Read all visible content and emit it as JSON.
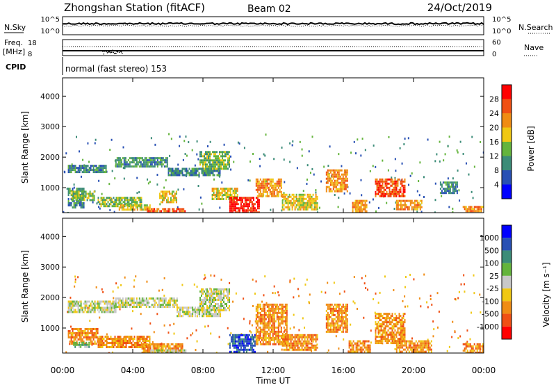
{
  "header": {
    "title": "Zhongshan Station (fitACF)",
    "beam": "Beam 02",
    "date": "24/Oct/2019"
  },
  "status_panels": {
    "nsky_label": "N.Sky",
    "nsky_ticks": [
      "10^5",
      "10^0"
    ],
    "nsearch_label": "N.Search",
    "nsearch_ticks": [
      "10^5",
      "10^0"
    ],
    "freq_label_1": "Freq.",
    "freq_label_2": "[MHz]",
    "freq_ticks": [
      "18",
      "8"
    ],
    "nave_label": "Nave",
    "nave_ticks": [
      "60",
      "0"
    ],
    "cpid_label": "CPID",
    "cpid_text": "normal (fast stereo) 153"
  },
  "colors": {
    "power": [
      "#0000ff",
      "#2850b4",
      "#3c8c78",
      "#64b43c",
      "#f0c814",
      "#f08c14",
      "#f05014",
      "#ff0000"
    ],
    "velocity": [
      "#ff0000",
      "#f05014",
      "#f08c14",
      "#f0c814",
      "#c8c8c8",
      "#64b43c",
      "#3c8c78",
      "#2850b4",
      "#0000ff"
    ]
  },
  "chart_data": [
    {
      "type": "heatmap",
      "panel": "power",
      "ylabel": "Slant Range [km]",
      "ylim": [
        180,
        4600
      ],
      "yticks": [
        "4000",
        "3000",
        "2000",
        "1000"
      ],
      "xlim": [
        0,
        24
      ],
      "colorbar_label": "Power [dB]",
      "colorbar_ticks": [
        "28",
        "24",
        "20",
        "16",
        "12",
        "8",
        "4"
      ],
      "colorbar_range": [
        0,
        32
      ],
      "blobs": [
        {
          "t0": 0.3,
          "t1": 1.2,
          "r0": 380,
          "r1": 1000,
          "level": 2
        },
        {
          "t0": 0.5,
          "t1": 1.8,
          "r0": 600,
          "r1": 900,
          "level": 3
        },
        {
          "t0": 2.0,
          "t1": 4.5,
          "r0": 400,
          "r1": 700,
          "level": 3
        },
        {
          "t0": 3.2,
          "t1": 5.0,
          "r0": 250,
          "r1": 450,
          "level": 4
        },
        {
          "t0": 4.8,
          "t1": 7.0,
          "r0": 200,
          "r1": 330,
          "level": 6
        },
        {
          "t0": 5.5,
          "t1": 6.5,
          "r0": 500,
          "r1": 900,
          "level": 4
        },
        {
          "t0": 0.3,
          "t1": 2.5,
          "r0": 1500,
          "r1": 1750,
          "level": 2
        },
        {
          "t0": 3.0,
          "t1": 6.0,
          "r0": 1700,
          "r1": 2000,
          "level": 2
        },
        {
          "t0": 6.0,
          "t1": 9.0,
          "r0": 1400,
          "r1": 1650,
          "level": 2
        },
        {
          "t0": 7.8,
          "t1": 9.5,
          "r0": 1600,
          "r1": 2200,
          "level": 3
        },
        {
          "t0": 8.5,
          "t1": 10.0,
          "r0": 600,
          "r1": 1000,
          "level": 4
        },
        {
          "t0": 9.5,
          "t1": 11.2,
          "r0": 200,
          "r1": 700,
          "level": 7
        },
        {
          "t0": 11.0,
          "t1": 12.5,
          "r0": 700,
          "r1": 1300,
          "level": 5
        },
        {
          "t0": 12.5,
          "t1": 14.5,
          "r0": 300,
          "r1": 800,
          "level": 4
        },
        {
          "t0": 15.0,
          "t1": 16.2,
          "r0": 900,
          "r1": 1600,
          "level": 5
        },
        {
          "t0": 16.5,
          "t1": 17.3,
          "r0": 250,
          "r1": 600,
          "level": 5
        },
        {
          "t0": 17.8,
          "t1": 19.5,
          "r0": 700,
          "r1": 1300,
          "level": 6
        },
        {
          "t0": 19.0,
          "t1": 20.5,
          "r0": 300,
          "r1": 600,
          "level": 5
        },
        {
          "t0": 21.5,
          "t1": 22.5,
          "r0": 800,
          "r1": 1200,
          "level": 2
        },
        {
          "t0": 22.8,
          "t1": 24.0,
          "r0": 200,
          "r1": 400,
          "level": 5
        }
      ]
    },
    {
      "type": "heatmap",
      "panel": "velocity",
      "ylabel": "Slant Range [km]",
      "ylim": [
        180,
        4600
      ],
      "yticks": [
        "4000",
        "3000",
        "2000",
        "1000"
      ],
      "xlim": [
        0,
        24
      ],
      "xlabel": "Time UT",
      "xticks": [
        "00:00",
        "04:00",
        "08:00",
        "12:00",
        "16:00",
        "20:00",
        "00:00"
      ],
      "colorbar_label": "Velocity [m s⁻¹]",
      "colorbar_ticks": [
        "1000",
        "500",
        "100",
        "25",
        "-25",
        "-100",
        "-500",
        "-1000"
      ],
      "blobs": [
        {
          "t0": 0.3,
          "t1": 2.0,
          "r0": 500,
          "r1": 1000,
          "level": 2
        },
        {
          "t0": 0.6,
          "t1": 1.5,
          "r0": 350,
          "r1": 550,
          "level": 5
        },
        {
          "t0": 2.0,
          "t1": 5.0,
          "r0": 400,
          "r1": 750,
          "level": 2
        },
        {
          "t0": 4.5,
          "t1": 6.8,
          "r0": 200,
          "r1": 500,
          "level": 2
        },
        {
          "t0": 5.0,
          "t1": 7.0,
          "r0": 200,
          "r1": 300,
          "level": 4
        },
        {
          "t0": 0.3,
          "t1": 3.0,
          "r0": 1500,
          "r1": 1900,
          "level": 4
        },
        {
          "t0": 3.0,
          "t1": 6.5,
          "r0": 1700,
          "r1": 2000,
          "level": 4
        },
        {
          "t0": 6.5,
          "t1": 9.0,
          "r0": 1400,
          "r1": 1700,
          "level": 4
        },
        {
          "t0": 7.8,
          "t1": 9.5,
          "r0": 1600,
          "r1": 2300,
          "level": 4
        },
        {
          "t0": 9.5,
          "t1": 11.0,
          "r0": 200,
          "r1": 800,
          "level": 7
        },
        {
          "t0": 11.0,
          "t1": 12.8,
          "r0": 500,
          "r1": 1800,
          "level": 2
        },
        {
          "t0": 12.5,
          "t1": 14.5,
          "r0": 300,
          "r1": 800,
          "level": 2
        },
        {
          "t0": 15.0,
          "t1": 16.2,
          "r0": 900,
          "r1": 1800,
          "level": 2
        },
        {
          "t0": 16.3,
          "t1": 17.5,
          "r0": 200,
          "r1": 600,
          "level": 2
        },
        {
          "t0": 17.8,
          "t1": 19.5,
          "r0": 500,
          "r1": 1500,
          "level": 2
        },
        {
          "t0": 19.0,
          "t1": 21.0,
          "r0": 250,
          "r1": 600,
          "level": 2
        },
        {
          "t0": 22.8,
          "t1": 24.0,
          "r0": 200,
          "r1": 500,
          "level": 2
        }
      ]
    }
  ]
}
